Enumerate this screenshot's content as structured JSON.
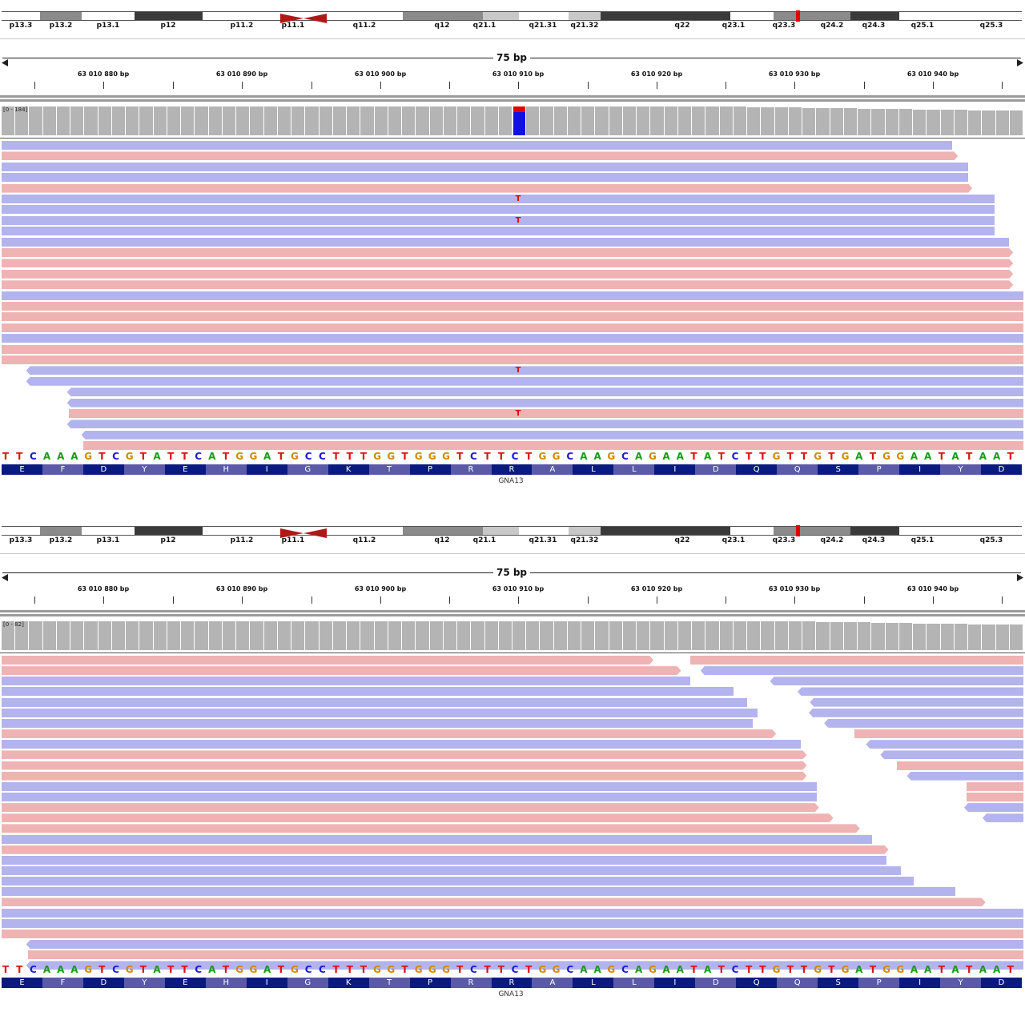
{
  "colors": {
    "forward_read": "#efb3b3",
    "reverse_read": "#b3b3ee",
    "coverage": "#b4b4b4",
    "mismatch_text": "#e00000",
    "allele_ref": "#1010e0",
    "allele_alt": "#e00000",
    "centromere": "#b01818",
    "cytoband_marker": "#e00000",
    "base_A": "#1a9a1a",
    "base_C": "#1a1ad0",
    "base_G": "#d08a00",
    "base_T": "#e01010",
    "aa_dark": "#0b1a80",
    "aa_light": "#5a5aa8"
  },
  "ideogram": {
    "bands": [
      {
        "label": "p13.3",
        "shade": "white"
      },
      {
        "label": "p13.2",
        "shade": "gpos50"
      },
      {
        "label": "p13.1",
        "shade": "white"
      },
      {
        "label": "p12",
        "shade": "gpos100"
      },
      {
        "label": "p11.2",
        "shade": "white"
      },
      {
        "label": "p11.1",
        "shade": "acen"
      },
      {
        "label": "q11.2",
        "shade": "white"
      },
      {
        "label": "q12",
        "shade": "gpos50"
      },
      {
        "label": "q21.1",
        "shade": "gpos25"
      },
      {
        "label": "q21.31",
        "shade": "white"
      },
      {
        "label": "q21.32",
        "shade": "gpos25"
      },
      {
        "label": "q22",
        "shade": "gpos100"
      },
      {
        "label": "q23.1",
        "shade": "gpos100"
      },
      {
        "label": "q23.3",
        "shade": "white"
      },
      {
        "label": "q24.2",
        "shade": "gpos50"
      },
      {
        "label": "q24.3",
        "shade": "gpos100"
      },
      {
        "label": "q25.1",
        "shade": "white"
      },
      {
        "label": "q25.3",
        "shade": "white"
      }
    ]
  },
  "ruler": {
    "span_label": "75 bp",
    "ticks": [
      "63 010 880 bp",
      "63 010 890 bp",
      "63 010 900 bp",
      "63 010 910 bp",
      "63 010 920 bp",
      "63 010 930 bp",
      "63 010 940 bp"
    ]
  },
  "reference": {
    "sequence": "TTCAAAGTCGTATTCATGGATGCCTTTGGTGGGTCTTCTGGCAAGCAGAATATCTTGTTGTGATGGAATATAAT",
    "amino_acids": [
      "E",
      "F",
      "D",
      "Y",
      "E",
      "H",
      "I",
      "G",
      "K",
      "T",
      "P",
      "R",
      "R",
      "A",
      "L",
      "L",
      "I",
      "D",
      "Q",
      "Q",
      "S",
      "P",
      "I",
      "Y",
      "D"
    ],
    "gene": "GNA13"
  },
  "panels": [
    {
      "coverage_range": "[0 - 184]",
      "variant_allele": {
        "ref_fraction": 0.8,
        "alt_fraction": 0.2
      },
      "mismatch_base": "T",
      "reads": [
        {
          "strand": "rev",
          "start": 0,
          "end": 0.93,
          "mismatch": false
        },
        {
          "strand": "fwd",
          "start": 0,
          "end": 0.936,
          "mismatch": false
        },
        {
          "strand": "rev",
          "start": 0,
          "end": 0.946,
          "mismatch": false
        },
        {
          "strand": "rev",
          "start": 0,
          "end": 0.946,
          "mismatch": false
        },
        {
          "strand": "fwd",
          "start": 0,
          "end": 0.95,
          "mismatch": false
        },
        {
          "strand": "rev",
          "start": 0,
          "end": 0.972,
          "mismatch": true
        },
        {
          "strand": "rev",
          "start": 0,
          "end": 0.972,
          "mismatch": false
        },
        {
          "strand": "rev",
          "start": 0,
          "end": 0.972,
          "mismatch": true
        },
        {
          "strand": "rev",
          "start": 0,
          "end": 0.972,
          "mismatch": false
        },
        {
          "strand": "rev",
          "start": 0,
          "end": 0.986,
          "mismatch": false
        },
        {
          "strand": "fwd",
          "start": 0,
          "end": 0.99,
          "mismatch": false
        },
        {
          "strand": "fwd",
          "start": 0,
          "end": 0.99,
          "mismatch": false
        },
        {
          "strand": "fwd",
          "start": 0,
          "end": 0.99,
          "mismatch": false
        },
        {
          "strand": "fwd",
          "start": 0,
          "end": 0.99,
          "mismatch": false
        },
        {
          "strand": "rev",
          "start": 0,
          "end": 1,
          "mismatch": false
        },
        {
          "strand": "fwd",
          "start": 0,
          "end": 1,
          "mismatch": false
        },
        {
          "strand": "fwd",
          "start": 0,
          "end": 1,
          "mismatch": false
        },
        {
          "strand": "fwd",
          "start": 0,
          "end": 1,
          "mismatch": false
        },
        {
          "strand": "rev",
          "start": 0,
          "end": 1,
          "mismatch": false
        },
        {
          "strand": "fwd",
          "start": 0,
          "end": 1,
          "mismatch": false
        },
        {
          "strand": "fwd",
          "start": 0,
          "end": 1,
          "mismatch": false
        },
        {
          "strand": "rev",
          "start": 0.024,
          "end": 1,
          "mismatch": true
        },
        {
          "strand": "rev",
          "start": 0.024,
          "end": 1,
          "mismatch": false
        },
        {
          "strand": "rev",
          "start": 0.064,
          "end": 1,
          "mismatch": false
        },
        {
          "strand": "rev",
          "start": 0.064,
          "end": 1,
          "mismatch": false
        },
        {
          "strand": "fwd",
          "start": 0.066,
          "end": 1,
          "mismatch": true
        },
        {
          "strand": "rev",
          "start": 0.064,
          "end": 1,
          "mismatch": false
        },
        {
          "strand": "rev",
          "start": 0.078,
          "end": 1,
          "mismatch": false
        },
        {
          "strand": "fwd",
          "start": 0.08,
          "end": 1,
          "mismatch": false
        }
      ]
    },
    {
      "coverage_range": "[0 - 82]",
      "reads": [
        {
          "strand": "fwd",
          "start": 0,
          "end": 0.638
        },
        {
          "strand": "fwd",
          "start": 0.674,
          "end": 1
        },
        {
          "strand": "fwd",
          "start": 0,
          "end": 0.665
        },
        {
          "strand": "rev",
          "start": 0.684,
          "end": 1
        },
        {
          "strand": "rev",
          "start": 0,
          "end": 0.674
        },
        {
          "strand": "rev",
          "start": 0.752,
          "end": 1
        },
        {
          "strand": "rev",
          "start": 0,
          "end": 0.716
        },
        {
          "strand": "rev",
          "start": 0.779,
          "end": 1
        },
        {
          "strand": "rev",
          "start": 0,
          "end": 0.73
        },
        {
          "strand": "rev",
          "start": 0.791,
          "end": 1
        },
        {
          "strand": "rev",
          "start": 0,
          "end": 0.74
        },
        {
          "strand": "rev",
          "start": 0.79,
          "end": 1
        },
        {
          "strand": "rev",
          "start": 0,
          "end": 0.735
        },
        {
          "strand": "rev",
          "start": 0.805,
          "end": 1
        },
        {
          "strand": "fwd",
          "start": 0,
          "end": 0.758
        },
        {
          "strand": "fwd",
          "start": 0.835,
          "end": 1
        },
        {
          "strand": "rev",
          "start": 0,
          "end": 0.782
        },
        {
          "strand": "rev",
          "start": 0.846,
          "end": 1
        },
        {
          "strand": "fwd",
          "start": 0,
          "end": 0.788
        },
        {
          "strand": "rev",
          "start": 0.86,
          "end": 1
        },
        {
          "strand": "fwd",
          "start": 0,
          "end": 0.788
        },
        {
          "strand": "fwd",
          "start": 0.876,
          "end": 1
        },
        {
          "strand": "fwd",
          "start": 0,
          "end": 0.788
        },
        {
          "strand": "rev",
          "start": 0.886,
          "end": 1
        },
        {
          "strand": "rev",
          "start": 0,
          "end": 0.798
        },
        {
          "strand": "fwd",
          "start": 0.944,
          "end": 1
        },
        {
          "strand": "rev",
          "start": 0,
          "end": 0.798
        },
        {
          "strand": "fwd",
          "start": 0.944,
          "end": 1
        },
        {
          "strand": "fwd",
          "start": 0,
          "end": 0.8
        },
        {
          "strand": "rev",
          "start": 0.942,
          "end": 1
        },
        {
          "strand": "fwd",
          "start": 0,
          "end": 0.814
        },
        {
          "strand": "rev",
          "start": 0.96,
          "end": 1
        },
        {
          "strand": "fwd",
          "start": 0,
          "end": 0.84
        },
        {
          "strand": "rev",
          "start": 0,
          "end": 0.852
        },
        {
          "strand": "fwd",
          "start": 0,
          "end": 0.868
        },
        {
          "strand": "rev",
          "start": 0,
          "end": 0.866
        },
        {
          "strand": "rev",
          "start": 0,
          "end": 0.88
        },
        {
          "strand": "rev",
          "start": 0,
          "end": 0.893
        },
        {
          "strand": "rev",
          "start": 0,
          "end": 0.933
        },
        {
          "strand": "fwd",
          "start": 0,
          "end": 0.963
        },
        {
          "strand": "rev",
          "start": 0,
          "end": 1
        },
        {
          "strand": "rev",
          "start": 0,
          "end": 1
        },
        {
          "strand": "fwd",
          "start": 0,
          "end": 1
        },
        {
          "strand": "rev",
          "start": 0.024,
          "end": 1
        },
        {
          "strand": "fwd",
          "start": 0.026,
          "end": 1
        },
        {
          "strand": "rev",
          "start": 0.024,
          "end": 1
        }
      ]
    }
  ]
}
